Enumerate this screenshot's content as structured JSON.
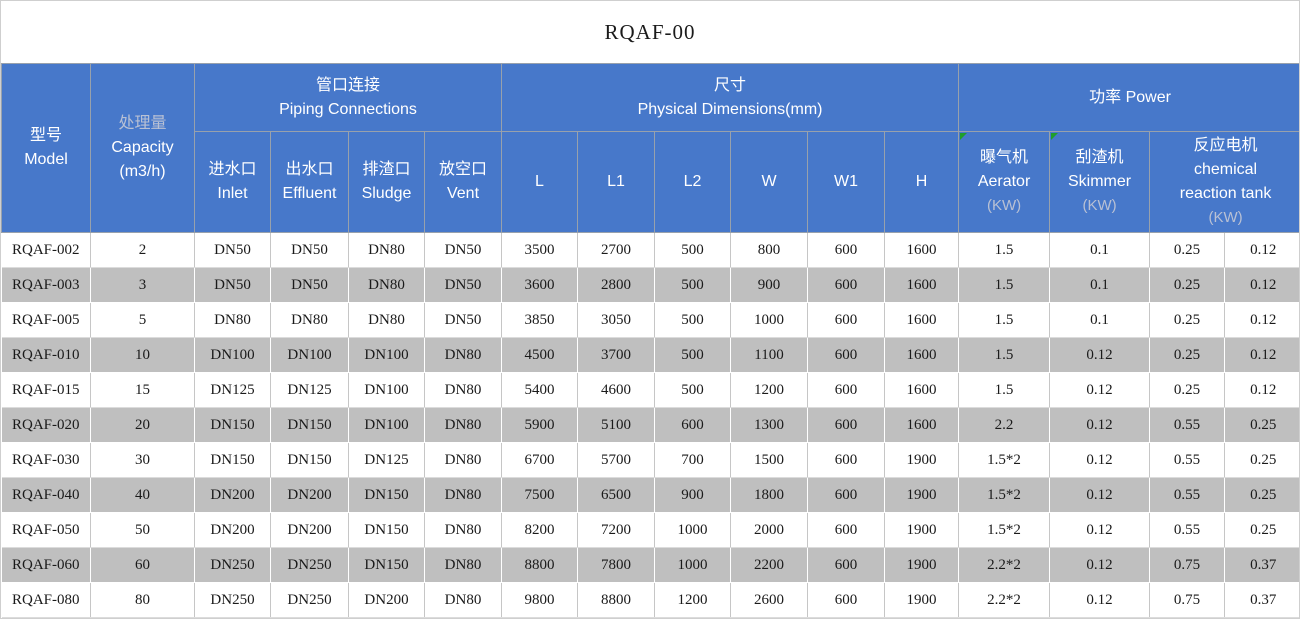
{
  "title": "RQAF-00",
  "colors": {
    "header_blue": "#4778CA",
    "band_gray": "#BFBFBF",
    "marker_green": "#1F9E2C",
    "dim_header_text": "#B9C1D4"
  },
  "header": {
    "model": {
      "zh": "型号",
      "en": "Model"
    },
    "capacity": {
      "zh": "处理量",
      "en": "Capacity",
      "unit": "(m3/h)"
    },
    "groups": {
      "piping": {
        "zh": "管口连接",
        "en": "Piping Connections"
      },
      "dimensions": {
        "zh": "尺寸",
        "en": "Physical Dimensions(mm)"
      },
      "power": {
        "label": "功率  Power"
      }
    },
    "sub": {
      "inlet": {
        "zh": "进水口",
        "en": "Inlet"
      },
      "effluent": {
        "zh": "出水口",
        "en": "Effluent"
      },
      "sludge": {
        "zh": "排渣口",
        "en": "Sludge"
      },
      "vent": {
        "zh": "放空口",
        "en": "Vent"
      },
      "l": "L",
      "l1": "L1",
      "l2": "L2",
      "w": "W",
      "w1": "W1",
      "h": "H",
      "aerator": {
        "zh": "曝气机",
        "en": "Aerator",
        "unit": "(KW)"
      },
      "skimmer": {
        "zh": "刮渣机",
        "en": "Skimmer",
        "unit": "(KW)"
      },
      "reaction": {
        "zh": "反应电机",
        "en1": "chemical",
        "en2": "reaction tank",
        "unit": "(KW)"
      }
    }
  },
  "rows": [
    [
      "RQAF-002",
      "2",
      "DN50",
      "DN50",
      "DN80",
      "DN50",
      "3500",
      "2700",
      "500",
      "800",
      "600",
      "1600",
      "1.5",
      "0.1",
      "0.25",
      "0.12"
    ],
    [
      "RQAF-003",
      "3",
      "DN50",
      "DN50",
      "DN80",
      "DN50",
      "3600",
      "2800",
      "500",
      "900",
      "600",
      "1600",
      "1.5",
      "0.1",
      "0.25",
      "0.12"
    ],
    [
      "RQAF-005",
      "5",
      "DN80",
      "DN80",
      "DN80",
      "DN50",
      "3850",
      "3050",
      "500",
      "1000",
      "600",
      "1600",
      "1.5",
      "0.1",
      "0.25",
      "0.12"
    ],
    [
      "RQAF-010",
      "10",
      "DN100",
      "DN100",
      "DN100",
      "DN80",
      "4500",
      "3700",
      "500",
      "1100",
      "600",
      "1600",
      "1.5",
      "0.12",
      "0.25",
      "0.12"
    ],
    [
      "RQAF-015",
      "15",
      "DN125",
      "DN125",
      "DN100",
      "DN80",
      "5400",
      "4600",
      "500",
      "1200",
      "600",
      "1600",
      "1.5",
      "0.12",
      "0.25",
      "0.12"
    ],
    [
      "RQAF-020",
      "20",
      "DN150",
      "DN150",
      "DN100",
      "DN80",
      "5900",
      "5100",
      "600",
      "1300",
      "600",
      "1600",
      "2.2",
      "0.12",
      "0.55",
      "0.25"
    ],
    [
      "RQAF-030",
      "30",
      "DN150",
      "DN150",
      "DN125",
      "DN80",
      "6700",
      "5700",
      "700",
      "1500",
      "600",
      "1900",
      "1.5*2",
      "0.12",
      "0.55",
      "0.25"
    ],
    [
      "RQAF-040",
      "40",
      "DN200",
      "DN200",
      "DN150",
      "DN80",
      "7500",
      "6500",
      "900",
      "1800",
      "600",
      "1900",
      "1.5*2",
      "0.12",
      "0.55",
      "0.25"
    ],
    [
      "RQAF-050",
      "50",
      "DN200",
      "DN200",
      "DN150",
      "DN80",
      "8200",
      "7200",
      "1000",
      "2000",
      "600",
      "1900",
      "1.5*2",
      "0.12",
      "0.55",
      "0.25"
    ],
    [
      "RQAF-060",
      "60",
      "DN250",
      "DN250",
      "DN150",
      "DN80",
      "8800",
      "7800",
      "1000",
      "2200",
      "600",
      "1900",
      "2.2*2",
      "0.12",
      "0.75",
      "0.37"
    ],
    [
      "RQAF-080",
      "80",
      "DN250",
      "DN250",
      "DN200",
      "DN80",
      "9800",
      "8800",
      "1200",
      "2600",
      "600",
      "1900",
      "2.2*2",
      "0.12",
      "0.75",
      "0.37"
    ]
  ]
}
